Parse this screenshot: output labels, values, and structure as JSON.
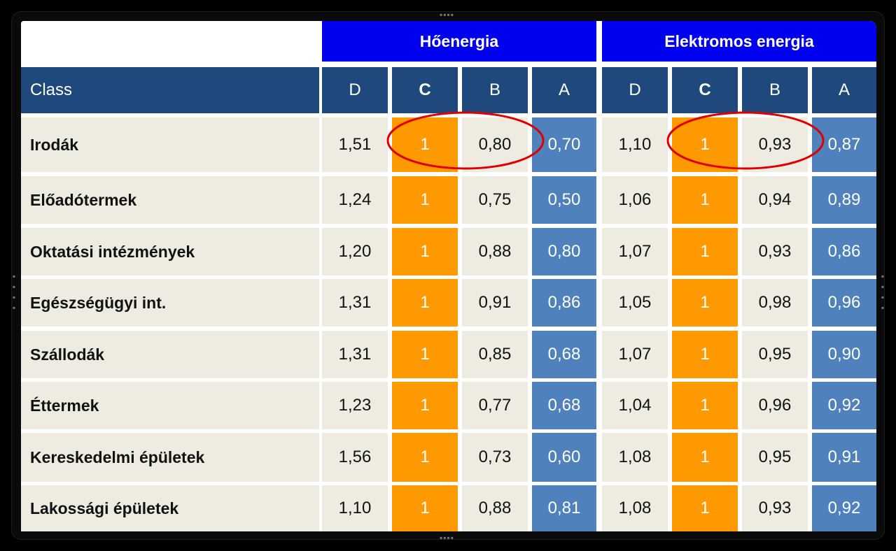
{
  "chart_data": {
    "type": "table",
    "class_header": "Class",
    "groups": [
      {
        "name": "Hőenergia",
        "columns": [
          "D",
          "C",
          "B",
          "A"
        ]
      },
      {
        "name": "Elektromos energia",
        "columns": [
          "D",
          "C",
          "B",
          "A"
        ]
      }
    ],
    "rows": [
      {
        "label": "Irodák",
        "values": [
          "1,51",
          "1",
          "0,80",
          "0,70",
          "1,10",
          "1",
          "0,93",
          "0,87"
        ]
      },
      {
        "label": "Előadótermek",
        "values": [
          "1,24",
          "1",
          "0,75",
          "0,50",
          "1,06",
          "1",
          "0,94",
          "0,89"
        ]
      },
      {
        "label": "Oktatási intézmények",
        "values": [
          "1,20",
          "1",
          "0,88",
          "0,80",
          "1,07",
          "1",
          "0,93",
          "0,86"
        ]
      },
      {
        "label": "Egészségügyi int.",
        "values": [
          "1,31",
          "1",
          "0,91",
          "0,86",
          "1,05",
          "1",
          "0,98",
          "0,96"
        ]
      },
      {
        "label": "Szállodák",
        "values": [
          "1,31",
          "1",
          "0,85",
          "0,68",
          "1,07",
          "1",
          "0,95",
          "0,90"
        ]
      },
      {
        "label": "Éttermek",
        "values": [
          "1,23",
          "1",
          "0,77",
          "0,68",
          "1,04",
          "1",
          "0,96",
          "0,92"
        ]
      },
      {
        "label": "Kereskedelmi épületek",
        "values": [
          "1,56",
          "1",
          "0,73",
          "0,60",
          "1,08",
          "1",
          "0,95",
          "0,91"
        ]
      },
      {
        "label": "Lakossági épületek",
        "values": [
          "1,10",
          "1",
          "0,88",
          "0,81",
          "1,08",
          "1",
          "0,93",
          "0,92"
        ]
      }
    ],
    "highlights": [
      {
        "row": 0,
        "group": 0,
        "columns": [
          "C",
          "B"
        ],
        "color": "#e00000"
      },
      {
        "row": 0,
        "group": 1,
        "columns": [
          "C",
          "B"
        ],
        "color": "#e00000"
      }
    ],
    "colors": {
      "group_header": "#0000ee",
      "column_header": "#1f497d",
      "body": "#eeece1",
      "class_c": "#ff9900",
      "class_a": "#4f81bd"
    }
  }
}
